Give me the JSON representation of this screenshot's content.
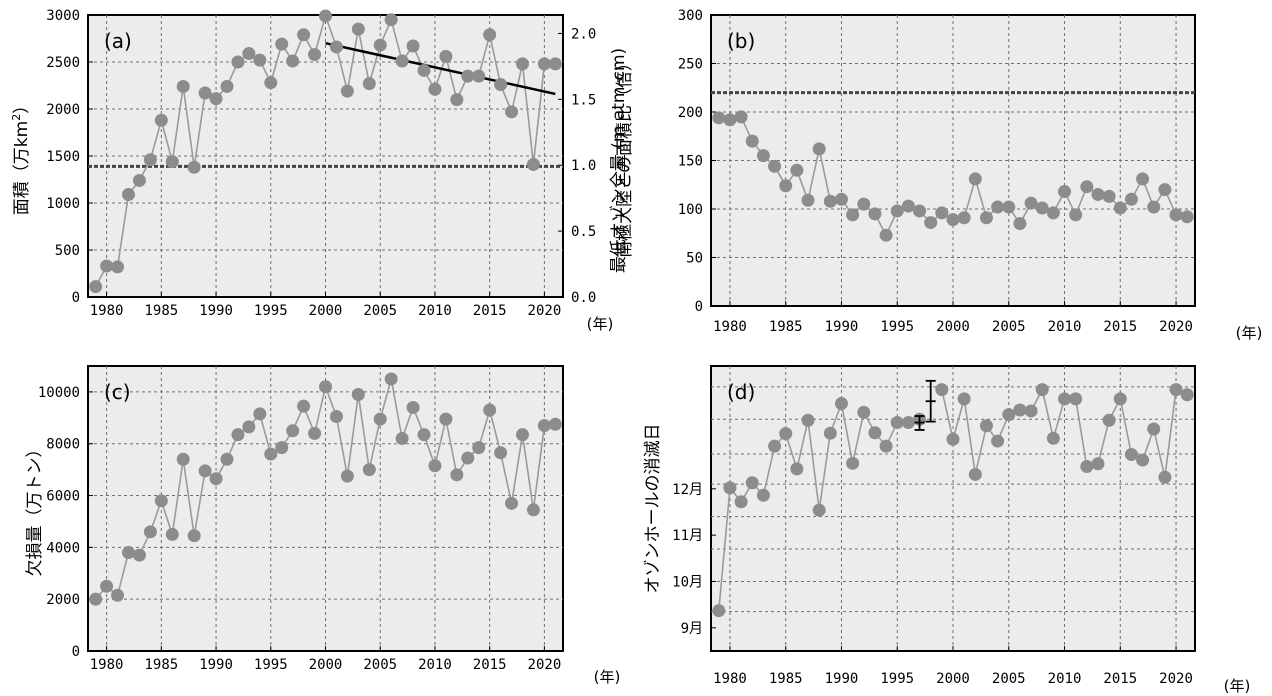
{
  "chart_data": [
    {
      "id": "a",
      "type": "line",
      "panel_label": "(a)",
      "ylabel": "面積（万km",
      "ylabel_sup": "2",
      "ylabel_end": "）",
      "ylabel_right": "南極大陸との面積比（倍）",
      "unit_label": "(年)",
      "ylim": [
        0,
        3000
      ],
      "yticks": [
        "0",
        "500",
        "1000",
        "1500",
        "2000",
        "2500",
        "3000"
      ],
      "y2lim": [
        0,
        2.14
      ],
      "y2ticks": [
        "0.0",
        "0.5",
        "1.0",
        "1.5",
        "2.0"
      ],
      "xlim": [
        1978.3,
        2021.7
      ],
      "xticks": [
        "1980",
        "1985",
        "1990",
        "1995",
        "2000",
        "2005",
        "2010",
        "2015",
        "2020"
      ],
      "x": [
        1979,
        1980,
        1981,
        1982,
        1983,
        1984,
        1985,
        1986,
        1987,
        1988,
        1989,
        1990,
        1991,
        1992,
        1993,
        1994,
        1995,
        1996,
        1997,
        1998,
        1999,
        2000,
        2001,
        2002,
        2003,
        2004,
        2005,
        2006,
        2007,
        2008,
        2009,
        2010,
        2011,
        2012,
        2013,
        2014,
        2015,
        2016,
        2017,
        2018,
        2019,
        2020,
        2021
      ],
      "y": [
        110,
        330,
        320,
        1090,
        1240,
        1460,
        1880,
        1440,
        2240,
        1380,
        2170,
        2110,
        2240,
        2500,
        2590,
        2520,
        2280,
        2690,
        2510,
        2790,
        2580,
        2990,
        2660,
        2190,
        2850,
        2270,
        2680,
        2950,
        2510,
        2670,
        2410,
        2210,
        2560,
        2100,
        2350,
        2350,
        2790,
        2260,
        1970,
        2480,
        1410,
        2480,
        2480
      ],
      "reference_line": 1390,
      "trend": {
        "x": [
          2000,
          2021
        ],
        "y": [
          2700,
          2160
        ]
      },
      "grid": true,
      "legend": "none"
    },
    {
      "id": "b",
      "type": "line",
      "panel_label": "(b)",
      "ylabel": "最低オゾン全量 (m atm-cm)",
      "unit_label": "(年)",
      "ylim": [
        0,
        300
      ],
      "yticks": [
        "0",
        "50",
        "100",
        "150",
        "200",
        "250",
        "300"
      ],
      "xlim": [
        1978.3,
        2021.7
      ],
      "xticks": [
        "1980",
        "1985",
        "1990",
        "1995",
        "2000",
        "2005",
        "2010",
        "2015",
        "2020"
      ],
      "x": [
        1979,
        1980,
        1981,
        1982,
        1983,
        1984,
        1985,
        1986,
        1987,
        1988,
        1989,
        1990,
        1991,
        1992,
        1993,
        1994,
        1995,
        1996,
        1997,
        1998,
        1999,
        2000,
        2001,
        2002,
        2003,
        2004,
        2005,
        2006,
        2007,
        2008,
        2009,
        2010,
        2011,
        2012,
        2013,
        2014,
        2015,
        2016,
        2017,
        2018,
        2019,
        2020,
        2021
      ],
      "y": [
        194,
        192,
        195,
        170,
        155,
        144,
        124,
        140,
        109,
        162,
        108,
        110,
        94,
        105,
        95,
        73,
        98,
        103,
        98,
        86,
        96,
        89,
        91,
        131,
        91,
        102,
        102,
        85,
        106,
        101,
        96,
        118,
        94,
        123,
        115,
        113,
        101,
        110,
        131,
        102,
        120,
        94,
        92
      ],
      "reference_line": 220,
      "grid": true,
      "legend": "none"
    },
    {
      "id": "c",
      "type": "line",
      "panel_label": "(c)",
      "ylabel": "欠損量（万トン）",
      "unit_label": "(年)",
      "ylim": [
        0,
        11000
      ],
      "yticks": [
        "0",
        "2000",
        "4000",
        "6000",
        "8000",
        "10000"
      ],
      "xlim": [
        1978.3,
        2021.7
      ],
      "xticks": [
        "1980",
        "1985",
        "1990",
        "1995",
        "2000",
        "2005",
        "2010",
        "2015",
        "2020"
      ],
      "x": [
        1979,
        1980,
        1981,
        1982,
        1983,
        1984,
        1985,
        1986,
        1987,
        1988,
        1989,
        1990,
        1991,
        1992,
        1993,
        1994,
        1995,
        1996,
        1997,
        1998,
        1999,
        2000,
        2001,
        2002,
        2003,
        2004,
        2005,
        2006,
        2007,
        2008,
        2009,
        2010,
        2011,
        2012,
        2013,
        2014,
        2015,
        2016,
        2017,
        2018,
        2019,
        2020,
        2021
      ],
      "y": [
        2000,
        2500,
        2150,
        3800,
        3700,
        4600,
        5800,
        4500,
        7400,
        4450,
        6950,
        6650,
        7400,
        8350,
        8650,
        9150,
        7600,
        7850,
        8500,
        9450,
        8400,
        10200,
        9050,
        6750,
        9900,
        7000,
        8950,
        10500,
        8200,
        9400,
        8350,
        7150,
        8950,
        6800,
        7450,
        7850,
        9300,
        7650,
        5700,
        8350,
        5450,
        8700,
        8750
      ],
      "grid": true,
      "legend": "none"
    },
    {
      "id": "d",
      "type": "line",
      "panel_label": "(d)",
      "ylabel": "オゾンホールの消滅日",
      "unit_label": "(年)",
      "ylim": [
        0,
        6.15
      ],
      "ytick_values": [
        0.5,
        1.5,
        2.5,
        3.5
      ],
      "yticks": [
        "9月",
        "10月",
        "11月",
        "12月"
      ],
      "ygrid_values": [
        0.85,
        1.5,
        2.2,
        2.9,
        3.6,
        4.25,
        5.0,
        5.7
      ],
      "xlim": [
        1978.3,
        2021.7
      ],
      "xticks": [
        "1980",
        "1985",
        "1990",
        "1995",
        "2000",
        "2005",
        "2010",
        "2015",
        "2020"
      ],
      "x": [
        1979,
        1980,
        1981,
        1982,
        1983,
        1984,
        1985,
        1986,
        1987,
        1988,
        1989,
        1990,
        1991,
        1992,
        1993,
        1994,
        1995,
        1996,
        1997,
        1999,
        2000,
        2001,
        2002,
        2003,
        2004,
        2005,
        2006,
        2007,
        2008,
        2009,
        2010,
        2011,
        2012,
        2013,
        2014,
        2015,
        2016,
        2017,
        2018,
        2019,
        2020,
        2021
      ],
      "y": [
        0.87,
        3.52,
        3.22,
        3.63,
        3.36,
        4.42,
        4.69,
        3.93,
        4.98,
        3.04,
        4.7,
        5.34,
        4.05,
        5.15,
        4.71,
        4.42,
        4.93,
        4.93,
        5.0,
        5.64,
        4.57,
        5.44,
        3.81,
        4.86,
        4.53,
        5.1,
        5.2,
        5.18,
        5.64,
        4.59,
        5.44,
        5.44,
        3.98,
        4.04,
        4.98,
        5.44,
        4.24,
        4.12,
        4.79,
        3.75,
        5.64,
        5.53
      ],
      "error_bars": [
        {
          "x": 1997,
          "y": 4.93,
          "low": 4.77,
          "high": 5.07
        },
        {
          "x": 1998,
          "y": 5.39,
          "low": 4.95,
          "high": 5.83
        }
      ],
      "grid": true,
      "legend": "none"
    }
  ]
}
